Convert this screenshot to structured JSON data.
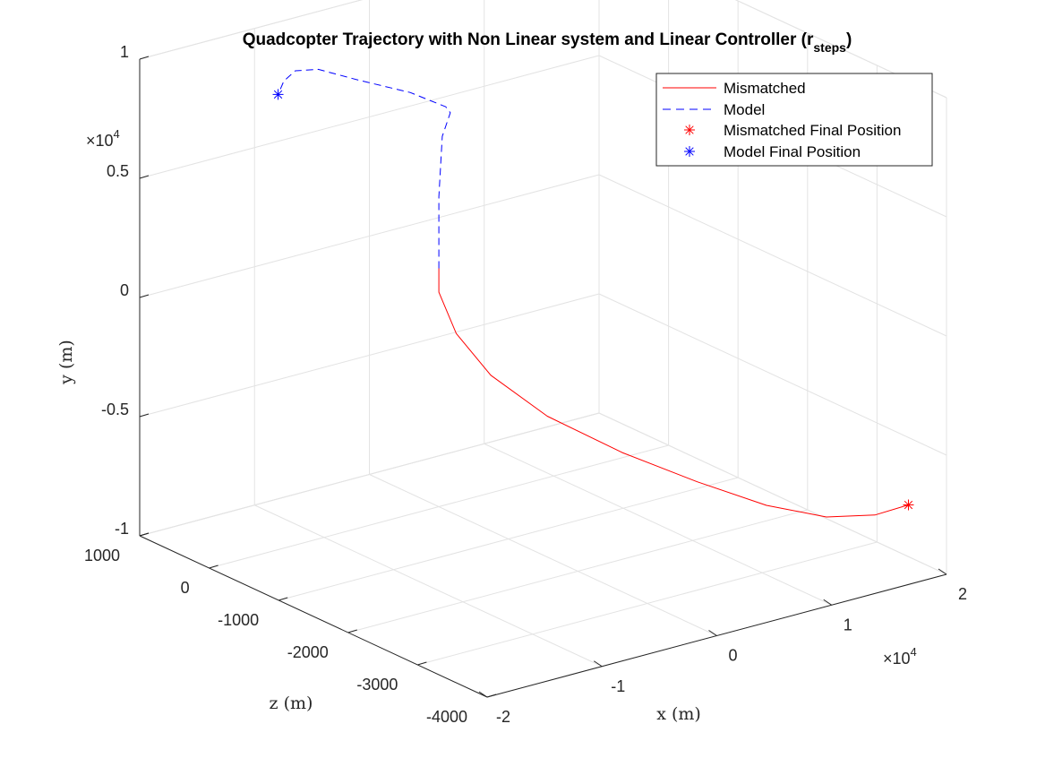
{
  "chart_data": {
    "type": "line",
    "dimensions": "3d",
    "title": "Quadcopter Trajectory with Non Linear system and Linear Controller (r",
    "title_subscript": "steps",
    "title_close": ")",
    "xlabel": "x (m)",
    "ylabel": "y (m)",
    "zlabel": "z (m)",
    "x_axis": {
      "ticks": [
        -2,
        -1,
        0,
        1,
        2
      ],
      "multiplier": "×10",
      "exponent": "4",
      "lim": [
        -20000,
        20000
      ]
    },
    "y_axis": {
      "ticks": [
        -1,
        -0.5,
        0,
        0.5,
        1
      ],
      "multiplier": "×10",
      "exponent": "4",
      "lim": [
        -10000,
        10000
      ]
    },
    "z_axis": {
      "ticks": [
        1000,
        0,
        -1000,
        -2000,
        -3000,
        -4000
      ],
      "lim": [
        -4000,
        1000
      ]
    },
    "grid": true,
    "legend": {
      "placement": "top-right",
      "entries": [
        "Mismatched",
        "Model",
        "Mismatched Final Position",
        "Model Final Position"
      ]
    },
    "series": [
      {
        "name": "Mismatched",
        "style": "solid",
        "color": "#ff0000",
        "points": [
          {
            "x": 0,
            "y": 0,
            "z": 0
          },
          {
            "x": 0,
            "y": -1000,
            "z": 0
          },
          {
            "x": 300,
            "y": -2500,
            "z": -200
          },
          {
            "x": 1500,
            "y": -4000,
            "z": -500
          },
          {
            "x": 4000,
            "y": -5500,
            "z": -900
          },
          {
            "x": 7500,
            "y": -6800,
            "z": -1400
          },
          {
            "x": 11000,
            "y": -7800,
            "z": -1900
          },
          {
            "x": 14000,
            "y": -8500,
            "z": -2400
          },
          {
            "x": 16500,
            "y": -8700,
            "z": -2850
          },
          {
            "x": 18000,
            "y": -8200,
            "z": -3300
          },
          {
            "x": 18500,
            "y": -7300,
            "z": -3700
          }
        ]
      },
      {
        "name": "Model",
        "style": "dashed",
        "color": "#0000ff",
        "points": [
          {
            "x": 0,
            "y": 0,
            "z": 0
          },
          {
            "x": 0,
            "y": 3000,
            "z": 0
          },
          {
            "x": 300,
            "y": 5500,
            "z": 0
          },
          {
            "x": 1000,
            "y": 6400,
            "z": 0
          },
          {
            "x": 600,
            "y": 6700,
            "z": 0
          },
          {
            "x": -2500,
            "y": 7700,
            "z": 0
          },
          {
            "x": -7000,
            "y": 8800,
            "z": 0
          },
          {
            "x": -10500,
            "y": 9700,
            "z": 0
          },
          {
            "x": -12500,
            "y": 9900,
            "z": 0
          },
          {
            "x": -13500,
            "y": 9600,
            "z": 0
          },
          {
            "x": -14000,
            "y": 9100,
            "z": 0
          }
        ]
      }
    ],
    "markers": [
      {
        "name": "Mismatched Final Position",
        "symbol": "asterisk",
        "color": "#ff0000",
        "x": 18500,
        "y": -7300,
        "z": -3700
      },
      {
        "name": "Model Final Position",
        "symbol": "asterisk",
        "color": "#0000ff",
        "x": -14000,
        "y": 9100,
        "z": 0
      }
    ]
  }
}
